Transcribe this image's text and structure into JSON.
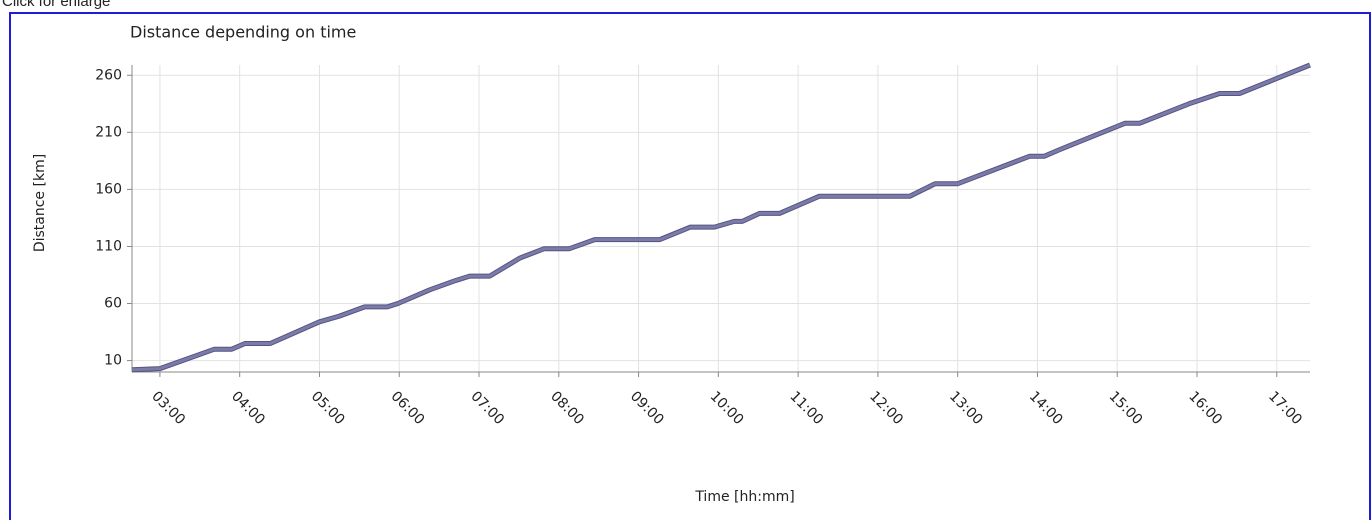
{
  "caption": "Click for enlarge",
  "chart_data": {
    "type": "line",
    "title": "Distance depending on time",
    "x_label": "Time  [hh:mm]",
    "y_label": "Distance [km]",
    "x": [
      "02:39",
      "03:00",
      "03:41",
      "03:54",
      "04:04",
      "04:23",
      "05:00",
      "05:15",
      "05:34",
      "05:51",
      "05:59",
      "06:23",
      "06:42",
      "06:53",
      "07:08",
      "07:31",
      "07:49",
      "08:08",
      "08:27",
      "09:16",
      "09:39",
      "09:57",
      "10:12",
      "10:18",
      "10:31",
      "10:46",
      "11:16",
      "12:24",
      "12:43",
      "13:00",
      "13:54",
      "14:05",
      "14:17",
      "15:06",
      "15:17",
      "15:54",
      "16:17",
      "16:32",
      "17:25"
    ],
    "series": [
      {
        "name": "Distance",
        "color": "#7b7bab",
        "values": [
          2,
          3,
          20,
          20,
          25,
          25,
          44,
          49,
          57,
          57,
          60,
          72,
          80,
          84,
          84,
          100,
          108,
          108,
          116,
          116,
          127,
          127,
          132,
          132,
          139,
          139,
          154,
          154,
          165,
          165,
          189,
          189,
          195,
          218,
          218,
          235,
          244,
          244,
          269
        ]
      }
    ],
    "xlim": [
      "02:39",
      "17:25"
    ],
    "xticks": [
      "03:00",
      "04:00",
      "05:00",
      "06:00",
      "07:00",
      "08:00",
      "09:00",
      "10:00",
      "11:00",
      "12:00",
      "13:00",
      "14:00",
      "15:00",
      "16:00",
      "17:00"
    ],
    "ylim": [
      0,
      269
    ],
    "yticks": [
      10,
      60,
      110,
      160,
      210,
      260
    ],
    "grid": true
  }
}
